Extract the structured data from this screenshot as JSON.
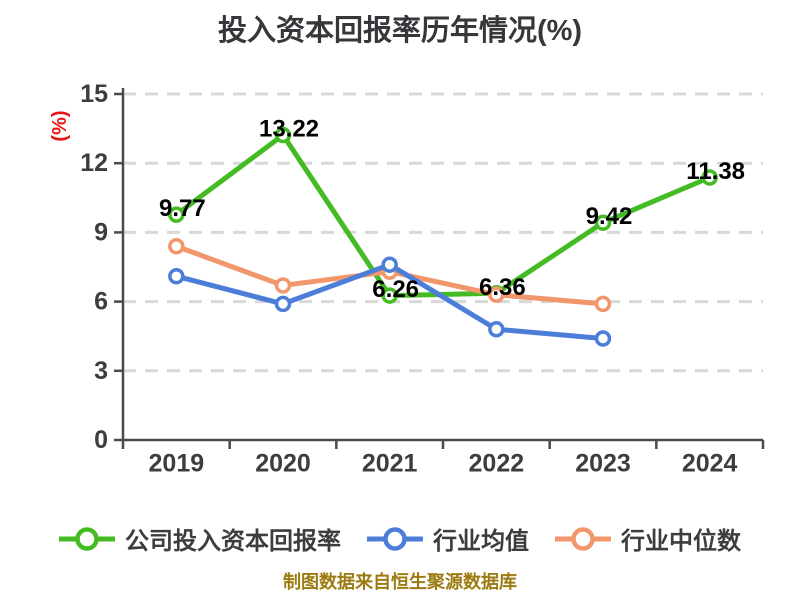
{
  "page": {
    "title": "投入资本回报率历年情况(%)",
    "footer": "制图数据来自恒生聚源数据库"
  },
  "chart_data": {
    "type": "line",
    "title": "投入资本回报率历年情况(%)",
    "xlabel": "",
    "ylabel": "(%)",
    "categories": [
      "2019",
      "2020",
      "2021",
      "2022",
      "2023",
      "2024"
    ],
    "ylim": [
      0,
      15
    ],
    "yticks": [
      0,
      3,
      6,
      9,
      12,
      15
    ],
    "grid": "horizontal-dashed",
    "legend_position": "bottom",
    "series": [
      {
        "name": "公司投入资本回报率",
        "color": "#44bb22",
        "values": [
          9.77,
          13.22,
          6.26,
          6.36,
          9.42,
          11.38
        ],
        "labels": [
          "9.77",
          "13.22",
          "6.26",
          "6.36",
          "9.42",
          "11.38"
        ],
        "data_labels": true
      },
      {
        "name": "行业均值",
        "color": "#4c7ed9",
        "values": [
          7.1,
          5.9,
          7.6,
          4.8,
          4.4,
          null
        ],
        "data_labels": false
      },
      {
        "name": "行业中位数",
        "color": "#f2966b",
        "values": [
          8.4,
          6.7,
          7.3,
          6.3,
          5.9,
          null
        ],
        "data_labels": false
      }
    ],
    "style": {
      "title_color": "#37373b",
      "axis_color": "#4a4a4e",
      "tick_label_color": "#3d3d40",
      "grid_color": "#d8d8d8",
      "data_label_color": "#000000",
      "ylabel_color": "#e81414",
      "footer_color": "#9c7c12",
      "marker_fill": "#ffffff"
    }
  }
}
